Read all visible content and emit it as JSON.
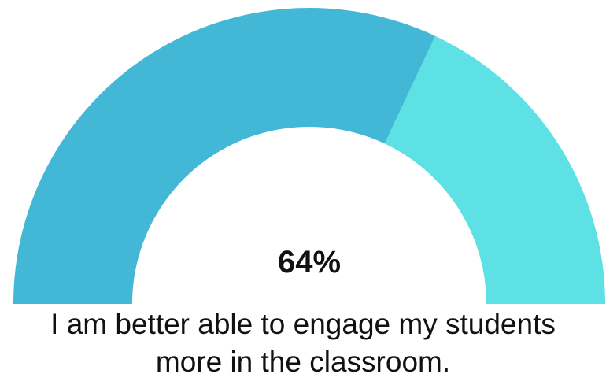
{
  "chart_data": {
    "type": "gauge",
    "value_label": "64%",
    "series": [
      {
        "value": 64,
        "color": "#42b7d6"
      },
      {
        "value": 36,
        "color": "#5ee1e5"
      }
    ],
    "caption_line1": "I am better able to engage my students",
    "caption_line2": "more in the classroom."
  }
}
